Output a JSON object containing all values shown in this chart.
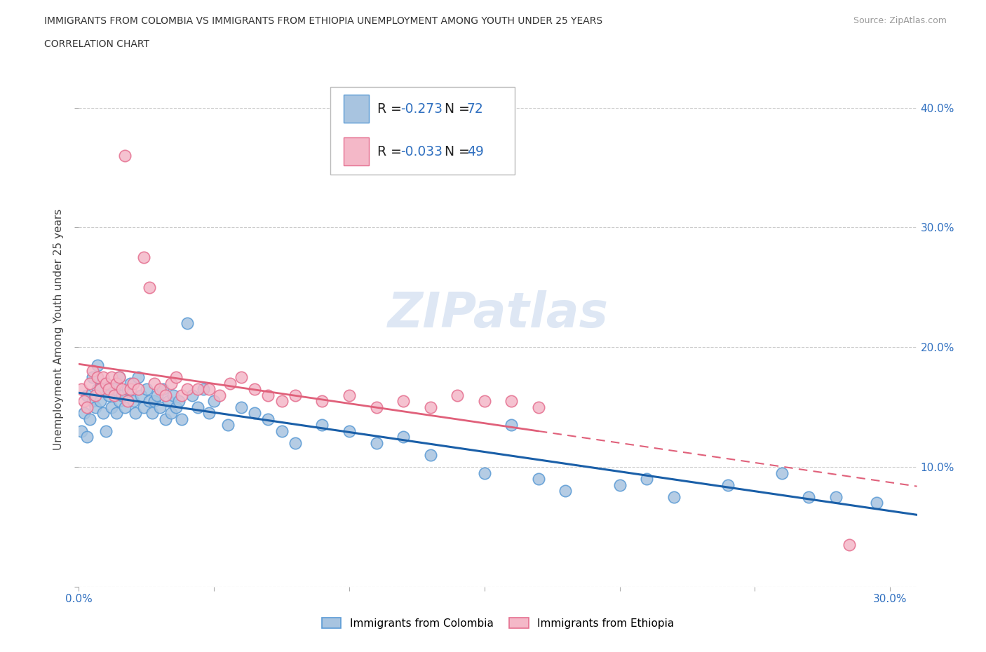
{
  "title_line1": "IMMIGRANTS FROM COLOMBIA VS IMMIGRANTS FROM ETHIOPIA UNEMPLOYMENT AMONG YOUTH UNDER 25 YEARS",
  "title_line2": "CORRELATION CHART",
  "source_text": "Source: ZipAtlas.com",
  "ylabel": "Unemployment Among Youth under 25 years",
  "xlim": [
    0.0,
    0.31
  ],
  "ylim": [
    0.0,
    0.43
  ],
  "watermark": "ZIPatlas",
  "colombia_color": "#a8c4e0",
  "colombia_edge": "#5b9bd5",
  "ethiopia_color": "#f4b8c8",
  "ethiopia_edge": "#e57090",
  "colombia_line_color": "#1a5fa8",
  "ethiopia_line_color": "#e0607a",
  "colombia_R": -0.273,
  "colombia_N": 72,
  "ethiopia_R": -0.033,
  "ethiopia_N": 49,
  "colombia_x": [
    0.001,
    0.002,
    0.003,
    0.003,
    0.004,
    0.005,
    0.005,
    0.006,
    0.007,
    0.007,
    0.008,
    0.009,
    0.01,
    0.01,
    0.011,
    0.012,
    0.013,
    0.014,
    0.015,
    0.015,
    0.016,
    0.017,
    0.018,
    0.019,
    0.02,
    0.021,
    0.022,
    0.023,
    0.024,
    0.025,
    0.026,
    0.027,
    0.028,
    0.029,
    0.03,
    0.031,
    0.032,
    0.033,
    0.034,
    0.035,
    0.036,
    0.037,
    0.038,
    0.04,
    0.042,
    0.044,
    0.046,
    0.048,
    0.05,
    0.055,
    0.06,
    0.065,
    0.07,
    0.075,
    0.08,
    0.09,
    0.1,
    0.11,
    0.12,
    0.13,
    0.15,
    0.16,
    0.17,
    0.18,
    0.2,
    0.21,
    0.22,
    0.24,
    0.26,
    0.27,
    0.28,
    0.295
  ],
  "colombia_y": [
    0.13,
    0.145,
    0.125,
    0.16,
    0.14,
    0.155,
    0.175,
    0.15,
    0.165,
    0.185,
    0.155,
    0.145,
    0.17,
    0.13,
    0.16,
    0.15,
    0.165,
    0.145,
    0.155,
    0.175,
    0.16,
    0.15,
    0.165,
    0.17,
    0.155,
    0.145,
    0.175,
    0.16,
    0.15,
    0.165,
    0.155,
    0.145,
    0.155,
    0.16,
    0.15,
    0.165,
    0.14,
    0.155,
    0.145,
    0.16,
    0.15,
    0.155,
    0.14,
    0.22,
    0.16,
    0.15,
    0.165,
    0.145,
    0.155,
    0.135,
    0.15,
    0.145,
    0.14,
    0.13,
    0.12,
    0.135,
    0.13,
    0.12,
    0.125,
    0.11,
    0.095,
    0.135,
    0.09,
    0.08,
    0.085,
    0.09,
    0.075,
    0.085,
    0.095,
    0.075,
    0.075,
    0.07
  ],
  "ethiopia_x": [
    0.001,
    0.002,
    0.003,
    0.004,
    0.005,
    0.006,
    0.007,
    0.008,
    0.009,
    0.01,
    0.011,
    0.012,
    0.013,
    0.014,
    0.015,
    0.016,
    0.017,
    0.018,
    0.019,
    0.02,
    0.022,
    0.024,
    0.026,
    0.028,
    0.03,
    0.032,
    0.034,
    0.036,
    0.038,
    0.04,
    0.044,
    0.048,
    0.052,
    0.056,
    0.06,
    0.065,
    0.07,
    0.075,
    0.08,
    0.09,
    0.1,
    0.11,
    0.12,
    0.13,
    0.14,
    0.15,
    0.16,
    0.17,
    0.285
  ],
  "ethiopia_y": [
    0.165,
    0.155,
    0.15,
    0.17,
    0.18,
    0.16,
    0.175,
    0.165,
    0.175,
    0.17,
    0.165,
    0.175,
    0.16,
    0.17,
    0.175,
    0.165,
    0.36,
    0.155,
    0.165,
    0.17,
    0.165,
    0.275,
    0.25,
    0.17,
    0.165,
    0.16,
    0.17,
    0.175,
    0.16,
    0.165,
    0.165,
    0.165,
    0.16,
    0.17,
    0.175,
    0.165,
    0.16,
    0.155,
    0.16,
    0.155,
    0.16,
    0.15,
    0.155,
    0.15,
    0.16,
    0.155,
    0.155,
    0.15,
    0.035
  ]
}
